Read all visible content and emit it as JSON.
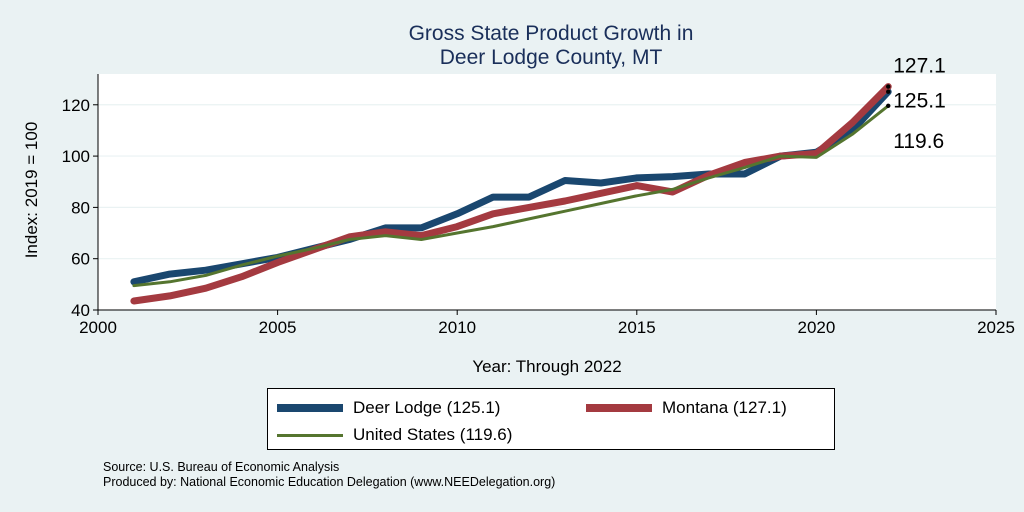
{
  "chart_data": {
    "type": "line",
    "title": [
      "Gross State Product Growth in",
      "Deer Lodge County, MT"
    ],
    "xlabel": "Year: Through 2022",
    "ylabel": "Index: 2019 = 100",
    "xlim": [
      2000,
      2025
    ],
    "ylim": [
      40,
      132
    ],
    "xticks": [
      2000,
      2005,
      2010,
      2015,
      2020,
      2025
    ],
    "yticks": [
      40,
      60,
      80,
      100,
      120
    ],
    "grid": true,
    "x": [
      2001,
      2002,
      2003,
      2004,
      2005,
      2006,
      2007,
      2008,
      2009,
      2010,
      2011,
      2012,
      2013,
      2014,
      2015,
      2016,
      2017,
      2018,
      2019,
      2020,
      2021,
      2022
    ],
    "series": [
      {
        "name": "Deer Lodge  (125.1)",
        "color": "#1a476f",
        "values": [
          51,
          54,
          55.5,
          58,
          60.5,
          64,
          67.5,
          72,
          72,
          77.5,
          84,
          84,
          90.5,
          89.5,
          91.5,
          92,
          93,
          93,
          100,
          101.5,
          110,
          125.1
        ],
        "end_label": "125.1"
      },
      {
        "name": "Montana (127.1)",
        "color": "#a43a40",
        "values": [
          43.5,
          45.5,
          48.5,
          53,
          58.5,
          63.5,
          68.5,
          70.5,
          69,
          72.5,
          77.5,
          80,
          82.5,
          85.5,
          88.5,
          86,
          92.5,
          97.5,
          100,
          101,
          113,
          127.1
        ],
        "end_label": "127.1"
      },
      {
        "name": "United States (119.6)",
        "color": "#55752f",
        "values": [
          49.5,
          51,
          53.5,
          57.5,
          61,
          64,
          67.5,
          69,
          67.5,
          70,
          72.5,
          75.5,
          78.5,
          81.5,
          84.5,
          87,
          91.5,
          95.5,
          100,
          99.5,
          108.5,
          119.6
        ],
        "end_label": "119.6"
      }
    ],
    "legend_position": "bottom"
  },
  "source": "Source: U.S. Bureau of Economic Analysis",
  "produced_by": "Produced by: National Economic Education Delegation (www.NEEDelegation.org)"
}
